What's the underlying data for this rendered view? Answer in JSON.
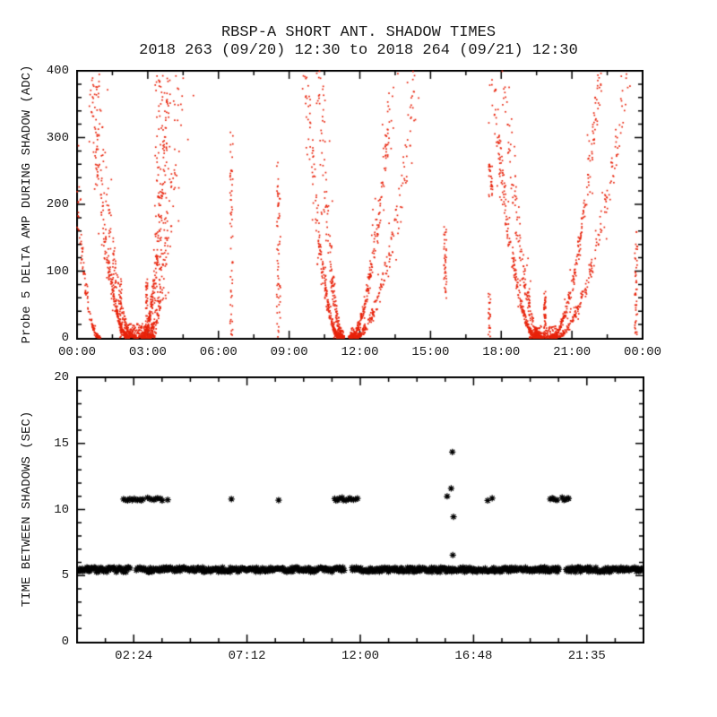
{
  "title": {
    "line1": "RBSP-A SHORT ANT. SHADOW TIMES",
    "line2": "2018 263 (09/20) 12:30 to 2018 264 (09/21) 12:30"
  },
  "colors": {
    "scatter_red": "#e8230b",
    "marker_black": "#000000",
    "axis": "#000000",
    "background": "#ffffff"
  },
  "chart_data": [
    {
      "type": "scatter",
      "name": "probe5-delta-amp",
      "ylabel": "Probe 5 DELTA AMP DURING SHADOW (ADC)",
      "xlabel": "",
      "marker": "dot",
      "color": "#e8230b",
      "xlim_hours": [
        0,
        24
      ],
      "x_tick_labels": [
        "00:00",
        "03:00",
        "06:00",
        "09:00",
        "12:00",
        "15:00",
        "18:00",
        "21:00",
        "00:00"
      ],
      "x_tick_hours": [
        0,
        3,
        6,
        9,
        12,
        15,
        18,
        21,
        24
      ],
      "x_minor_step_hours": 1.5,
      "ylim": [
        0,
        400
      ],
      "y_tick_values": [
        0,
        100,
        200,
        300,
        400
      ],
      "y_minor_step": 20,
      "description": "Three V-shaped eclipse envelopes (minima near 02:20, 11:20, 19:50) of double dotted traces, plus sparse vertical dot columns",
      "arms": [
        {
          "t0": 2.2,
          "t400": 0.55,
          "n": 320,
          "sp": 1.0
        },
        {
          "t0": 2.45,
          "t400": 0.8,
          "n": 200,
          "sp": 1.3
        },
        {
          "t0": 0.95,
          "t400": -0.4,
          "n": 170,
          "sp": 0.8
        },
        {
          "t0": 2.75,
          "t400": 3.9,
          "n": 280,
          "sp": 1.0
        },
        {
          "t0": 3.0,
          "t400": 4.35,
          "n": 190,
          "sp": 2.0
        },
        {
          "t0": 11.15,
          "t400": 9.7,
          "n": 300,
          "sp": 1.0
        },
        {
          "t0": 11.32,
          "t400": 10.25,
          "n": 220,
          "sp": 1.4
        },
        {
          "t0": 11.55,
          "t400": 13.4,
          "n": 300,
          "sp": 1.0
        },
        {
          "t0": 11.72,
          "t400": 14.45,
          "n": 240,
          "sp": 1.5
        },
        {
          "t0": 19.55,
          "t400": 17.6,
          "n": 300,
          "sp": 1.0
        },
        {
          "t0": 19.72,
          "t400": 18.15,
          "n": 240,
          "sp": 1.4
        },
        {
          "t0": 20.05,
          "t400": 22.2,
          "n": 300,
          "sp": 1.0
        },
        {
          "t0": 20.22,
          "t400": 23.35,
          "n": 240,
          "sp": 1.5
        }
      ],
      "stripes": [
        {
          "t": 1.85,
          "ymin": 0,
          "ymax": 90,
          "n": 28,
          "w": 0.04
        },
        {
          "t": 2.95,
          "ymin": 0,
          "ymax": 95,
          "n": 35,
          "w": 0.04
        },
        {
          "t": 3.55,
          "ymin": 40,
          "ymax": 395,
          "n": 95,
          "w": 0.25
        },
        {
          "t": 6.55,
          "ymin": 0,
          "ymax": 310,
          "n": 55,
          "w": 0.06
        },
        {
          "t": 8.55,
          "ymin": 0,
          "ymax": 265,
          "n": 60,
          "w": 0.08
        },
        {
          "t": 15.62,
          "ymin": 45,
          "ymax": 170,
          "n": 40,
          "w": 0.06
        },
        {
          "t": 17.5,
          "ymin": 0,
          "ymax": 68,
          "n": 25,
          "w": 0.05
        },
        {
          "t": 17.55,
          "ymin": 205,
          "ymax": 260,
          "n": 30,
          "w": 0.08
        },
        {
          "t": 19.85,
          "ymin": 0,
          "ymax": 70,
          "n": 45,
          "w": 0.04
        },
        {
          "t": 23.72,
          "ymin": 0,
          "ymax": 160,
          "n": 45,
          "w": 0.06
        }
      ],
      "bottom_bands": [
        {
          "t1": 2.05,
          "t2": 3.3,
          "ymax": 22,
          "n": 220
        },
        {
          "t1": 10.9,
          "t2": 11.3,
          "ymax": 12,
          "n": 60
        },
        {
          "t1": 11.6,
          "t2": 12.0,
          "ymax": 15,
          "n": 70
        },
        {
          "t1": 19.2,
          "t2": 20.35,
          "ymax": 18,
          "n": 160
        }
      ]
    },
    {
      "type": "scatter",
      "name": "time-between-shadows",
      "ylabel": "TIME BETWEEN SHADOWS (SEC)",
      "xlabel": "",
      "marker": "asterisk",
      "color": "#000000",
      "xlim_hours": [
        0,
        24
      ],
      "x_tick_labels": [
        "02:24",
        "07:12",
        "12:00",
        "16:48",
        "21:35"
      ],
      "x_tick_hours": [
        2.4,
        7.2,
        12.0,
        16.8,
        21.6
      ],
      "x_minor_step_hours": 1.2,
      "ylim": [
        0,
        20
      ],
      "y_tick_values": [
        0,
        5,
        10,
        15,
        20
      ],
      "y_minor_step": 1,
      "band": {
        "value": 5.45,
        "value_jitter": 0.36,
        "t_start": 0.05,
        "t_end": 23.95,
        "step_hours": 0.042,
        "gaps": [
          [
            2.25,
            2.5
          ],
          [
            11.35,
            11.62
          ],
          [
            20.45,
            20.72
          ]
        ]
      },
      "upper_cluster_value": 10.8,
      "upper_clusters": [
        {
          "t1": 1.97,
          "t2": 2.35,
          "n": 5
        },
        {
          "t1": 2.42,
          "t2": 2.8,
          "n": 6
        },
        {
          "t1": 2.97,
          "t2": 3.62,
          "n": 8
        },
        {
          "t1": 3.8,
          "t2": 3.88,
          "n": 1
        },
        {
          "t1": 6.5,
          "t2": 6.58,
          "n": 1
        },
        {
          "t1": 8.5,
          "t2": 8.58,
          "n": 1
        },
        {
          "t1": 10.9,
          "t2": 11.3,
          "n": 6
        },
        {
          "t1": 11.4,
          "t2": 11.87,
          "n": 7
        },
        {
          "t1": 17.4,
          "t2": 17.6,
          "n": 2
        },
        {
          "t1": 20.05,
          "t2": 20.33,
          "n": 5
        },
        {
          "t1": 20.55,
          "t2": 20.83,
          "n": 5
        }
      ],
      "outliers": [
        {
          "t": 15.9,
          "v": 14.35
        },
        {
          "t": 15.85,
          "v": 11.6
        },
        {
          "t": 15.68,
          "v": 11.0
        },
        {
          "t": 15.95,
          "v": 9.45
        },
        {
          "t": 15.92,
          "v": 6.55
        }
      ]
    }
  ]
}
